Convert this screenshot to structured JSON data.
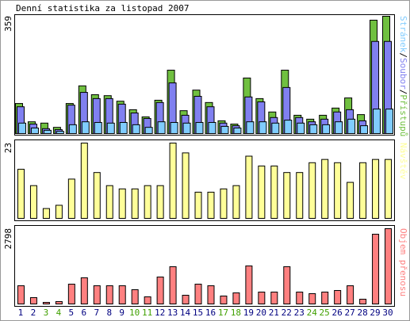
{
  "chart_data": [
    {
      "type": "bar",
      "title": "Denní statistika za listopad 2007",
      "ylim": [
        0,
        359
      ],
      "yticks": [
        359
      ],
      "legend_separator": "/",
      "series": [
        {
          "name": "Stránek",
          "color": "#80ccff",
          "values": [
            32,
            17,
            10,
            7,
            27,
            36,
            34,
            32,
            34,
            27,
            19,
            36,
            34,
            32,
            34,
            34,
            22,
            17,
            36,
            36,
            32,
            41,
            32,
            27,
            27,
            36,
            44,
            24,
            75,
            75
          ]
        },
        {
          "name": "Soubor",
          "color": "#8080f0",
          "values": [
            82,
            29,
            15,
            12,
            87,
            126,
            107,
            107,
            90,
            63,
            46,
            95,
            155,
            56,
            114,
            82,
            32,
            24,
            112,
            97,
            49,
            141,
            49,
            36,
            44,
            66,
            73,
            39,
            282,
            282
          ]
        },
        {
          "name": "Přístupů",
          "color": "#70c040",
          "values": [
            92,
            36,
            32,
            19,
            92,
            146,
            119,
            116,
            99,
            73,
            51,
            102,
            194,
            70,
            133,
            95,
            39,
            29,
            170,
            107,
            66,
            194,
            56,
            44,
            56,
            78,
            109,
            58,
            347,
            359
          ]
        }
      ]
    },
    {
      "type": "bar",
      "ylim": [
        0,
        23
      ],
      "yticks": [
        23
      ],
      "series": [
        {
          "name": "Návštěv",
          "color": "#ffff99",
          "values": [
            15,
            10,
            3,
            4,
            12,
            23,
            14,
            10,
            9,
            9,
            10,
            10,
            23,
            20,
            8,
            8,
            9,
            10,
            19,
            16,
            16,
            14,
            14,
            17,
            18,
            17,
            11,
            17,
            18,
            18
          ]
        }
      ]
    },
    {
      "type": "bar",
      "ylim": [
        0,
        2798
      ],
      "yticks": [
        2798
      ],
      "categories": [
        "1",
        "2",
        "3",
        "4",
        "5",
        "6",
        "7",
        "8",
        "9",
        "10",
        "11",
        "12",
        "13",
        "14",
        "15",
        "16",
        "17",
        "18",
        "19",
        "20",
        "21",
        "22",
        "23",
        "24",
        "25",
        "26",
        "27",
        "28",
        "29",
        "30"
      ],
      "category_colors": [
        "#000080",
        "#000080",
        "#40a000",
        "#40a000",
        "#000080",
        "#000080",
        "#000080",
        "#000080",
        "#000080",
        "#40a000",
        "#40a000",
        "#000080",
        "#000080",
        "#000080",
        "#000080",
        "#000080",
        "#40a000",
        "#40a000",
        "#000080",
        "#000080",
        "#000080",
        "#000080",
        "#000080",
        "#40a000",
        "#40a000",
        "#000080",
        "#000080",
        "#000080",
        "#000080",
        "#000080"
      ],
      "series": [
        {
          "name": "Objem přenosu",
          "color": "#ff8080",
          "values": [
            677,
            236,
            59,
            88,
            736,
            972,
            677,
            677,
            677,
            530,
            265,
            1001,
            1384,
            324,
            736,
            677,
            295,
            412,
            1413,
            442,
            442,
            1384,
            442,
            383,
            442,
            501,
            677,
            177,
            2592,
            2798
          ]
        }
      ]
    }
  ]
}
